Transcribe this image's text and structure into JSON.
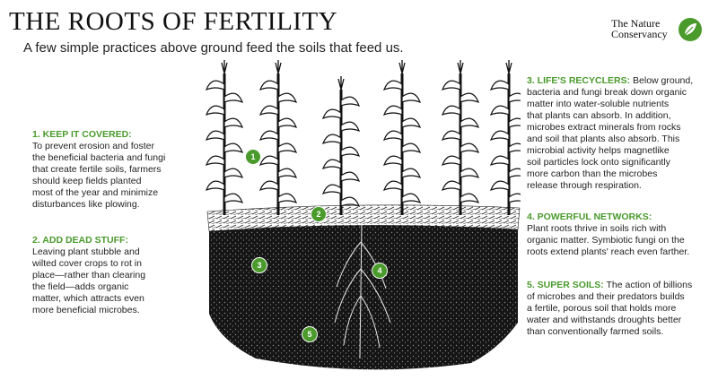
{
  "header": {
    "title": "THE ROOTS OF FERTILITY",
    "subtitle": "A few simple practices above ground feed the soils that feed us."
  },
  "logo": {
    "line1": "The Nature",
    "line2": "Conservancy",
    "icon": "leaf-globe-icon"
  },
  "colors": {
    "accent": "#4a9a2c",
    "soil": "#141414"
  },
  "panels": [
    {
      "heading": "1. KEEP IT COVERED:",
      "lines": [
        "To prevent erosion and foster",
        "the beneficial bacteria and fungi",
        "that create fertile soils, farmers",
        "should keep fields planted",
        "most of the year and minimize",
        "disturbances like plowing."
      ]
    },
    {
      "heading": "2. ADD DEAD STUFF:",
      "lines": [
        "Leaving plant stubble and",
        "wilted cover crops to rot in",
        "place—rather than clearing",
        "the field—adds organic",
        "matter, which attracts even",
        "more beneficial microbes."
      ]
    },
    {
      "heading": "3. LIFE'S RECYCLERS:",
      "lead": "Below ground,",
      "lines": [
        "bacteria and fungi break down organic",
        "matter into water-soluble nutrients",
        "that plants can absorb. In addition,",
        "microbes extract minerals from rocks",
        "and soil that plants also absorb. This",
        "microbial activity helps magnetlike",
        "soil particles lock onto significantly",
        "more carbon than the microbes",
        "release through respiration."
      ]
    },
    {
      "heading": "4. POWERFUL NETWORKS:",
      "lines": [
        "Plant roots thrive in soils rich with",
        "organic matter. Symbiotic fungi on the",
        "roots extend plants' reach even farther."
      ]
    },
    {
      "heading": "5. SUPER SOILS:",
      "lead": "The action of billions",
      "lines": [
        "of microbes and their predators builds",
        "a fertile, porous soil that holds more",
        "water and withstands droughts better",
        "than conventionally farmed soils."
      ]
    }
  ],
  "badges": [
    "1",
    "2",
    "3",
    "4",
    "5"
  ]
}
